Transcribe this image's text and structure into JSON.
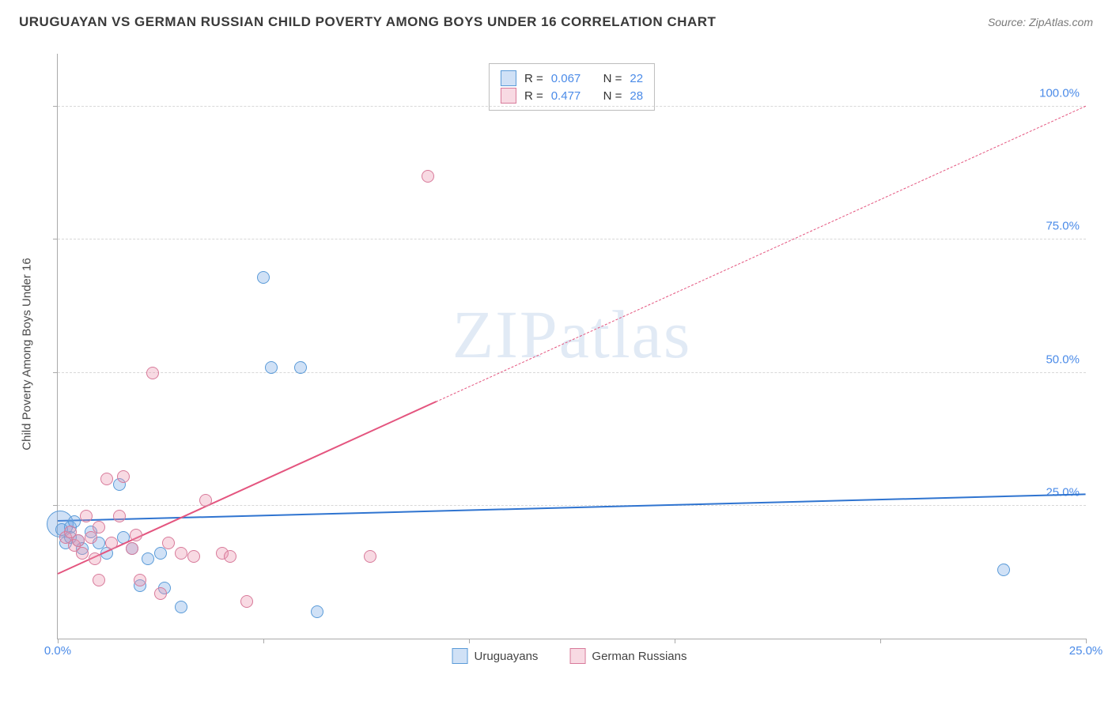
{
  "header": {
    "title": "URUGUAYAN VS GERMAN RUSSIAN CHILD POVERTY AMONG BOYS UNDER 16 CORRELATION CHART",
    "source_prefix": "Source: ",
    "source_name": "ZipAtlas.com"
  },
  "watermark": {
    "bold": "ZIP",
    "light": "atlas"
  },
  "chart": {
    "type": "scatter",
    "ylabel": "Child Poverty Among Boys Under 16",
    "background_color": "#ffffff",
    "grid_color": "#d8d8d8",
    "axis_color": "#aaaaaa",
    "tick_color": "#4b8be8",
    "xlim": [
      0,
      25
    ],
    "ylim": [
      0,
      110
    ],
    "ytick_vals": [
      25,
      50,
      75,
      100
    ],
    "ytick_labels": [
      "25.0%",
      "50.0%",
      "75.0%",
      "100.0%"
    ],
    "xtick_vals": [
      0,
      5,
      10,
      15,
      20,
      25
    ],
    "xtick_labels": [
      "0.0%",
      "",
      "",
      "",
      "",
      "25.0%"
    ],
    "series": [
      {
        "name": "Uruguayans",
        "fill": "rgba(120,170,230,0.35)",
        "stroke": "#5a9bd8",
        "line_color": "#2f74d0",
        "marker_size": 16,
        "R": "0.067",
        "N": "22",
        "trend": {
          "x1": 0,
          "y1": 22.0,
          "x2": 25,
          "y2": 27.0,
          "solid_until_x": 25
        },
        "points": [
          [
            0.1,
            20.5
          ],
          [
            0.2,
            18.0
          ],
          [
            0.3,
            21.0
          ],
          [
            0.3,
            19.0
          ],
          [
            0.4,
            22.0
          ],
          [
            0.5,
            18.5
          ],
          [
            0.6,
            17.0
          ],
          [
            0.8,
            20.0
          ],
          [
            1.0,
            18.0
          ],
          [
            1.2,
            16.0
          ],
          [
            1.5,
            29.0
          ],
          [
            1.6,
            19.0
          ],
          [
            1.8,
            17.0
          ],
          [
            2.0,
            10.0
          ],
          [
            2.2,
            15.0
          ],
          [
            2.5,
            16.0
          ],
          [
            2.6,
            9.5
          ],
          [
            3.0,
            6.0
          ],
          [
            5.0,
            68.0
          ],
          [
            5.2,
            51.0
          ],
          [
            5.9,
            51.0
          ],
          [
            6.3,
            5.0
          ],
          [
            23.0,
            13.0
          ]
        ],
        "big_points": [
          [
            0.05,
            21.5,
            34
          ]
        ]
      },
      {
        "name": "German Russians",
        "fill": "rgba(235,150,175,0.35)",
        "stroke": "#d87a9a",
        "line_color": "#e4557f",
        "marker_size": 16,
        "R": "0.477",
        "N": "28",
        "trend": {
          "x1": 0,
          "y1": 12.0,
          "x2": 25,
          "y2": 100.0,
          "solid_until_x": 9.2
        },
        "points": [
          [
            0.2,
            19.0
          ],
          [
            0.3,
            20.0
          ],
          [
            0.4,
            17.5
          ],
          [
            0.5,
            18.5
          ],
          [
            0.6,
            16.0
          ],
          [
            0.7,
            23.0
          ],
          [
            0.8,
            19.0
          ],
          [
            0.9,
            15.0
          ],
          [
            1.0,
            11.0
          ],
          [
            1.0,
            21.0
          ],
          [
            1.2,
            30.0
          ],
          [
            1.3,
            18.0
          ],
          [
            1.5,
            23.0
          ],
          [
            1.6,
            30.5
          ],
          [
            1.8,
            17.0
          ],
          [
            1.9,
            19.5
          ],
          [
            2.0,
            11.0
          ],
          [
            2.3,
            50.0
          ],
          [
            2.5,
            8.5
          ],
          [
            2.7,
            18.0
          ],
          [
            3.0,
            16.0
          ],
          [
            3.3,
            15.5
          ],
          [
            3.6,
            26.0
          ],
          [
            4.0,
            16.0
          ],
          [
            4.2,
            15.5
          ],
          [
            4.6,
            7.0
          ],
          [
            7.6,
            15.5
          ],
          [
            9.0,
            87.0
          ]
        ],
        "big_points": []
      }
    ],
    "stat_legend_labels": {
      "R": "R =",
      "N": "N ="
    },
    "bottom_legend": [
      "Uruguayans",
      "German Russians"
    ]
  }
}
